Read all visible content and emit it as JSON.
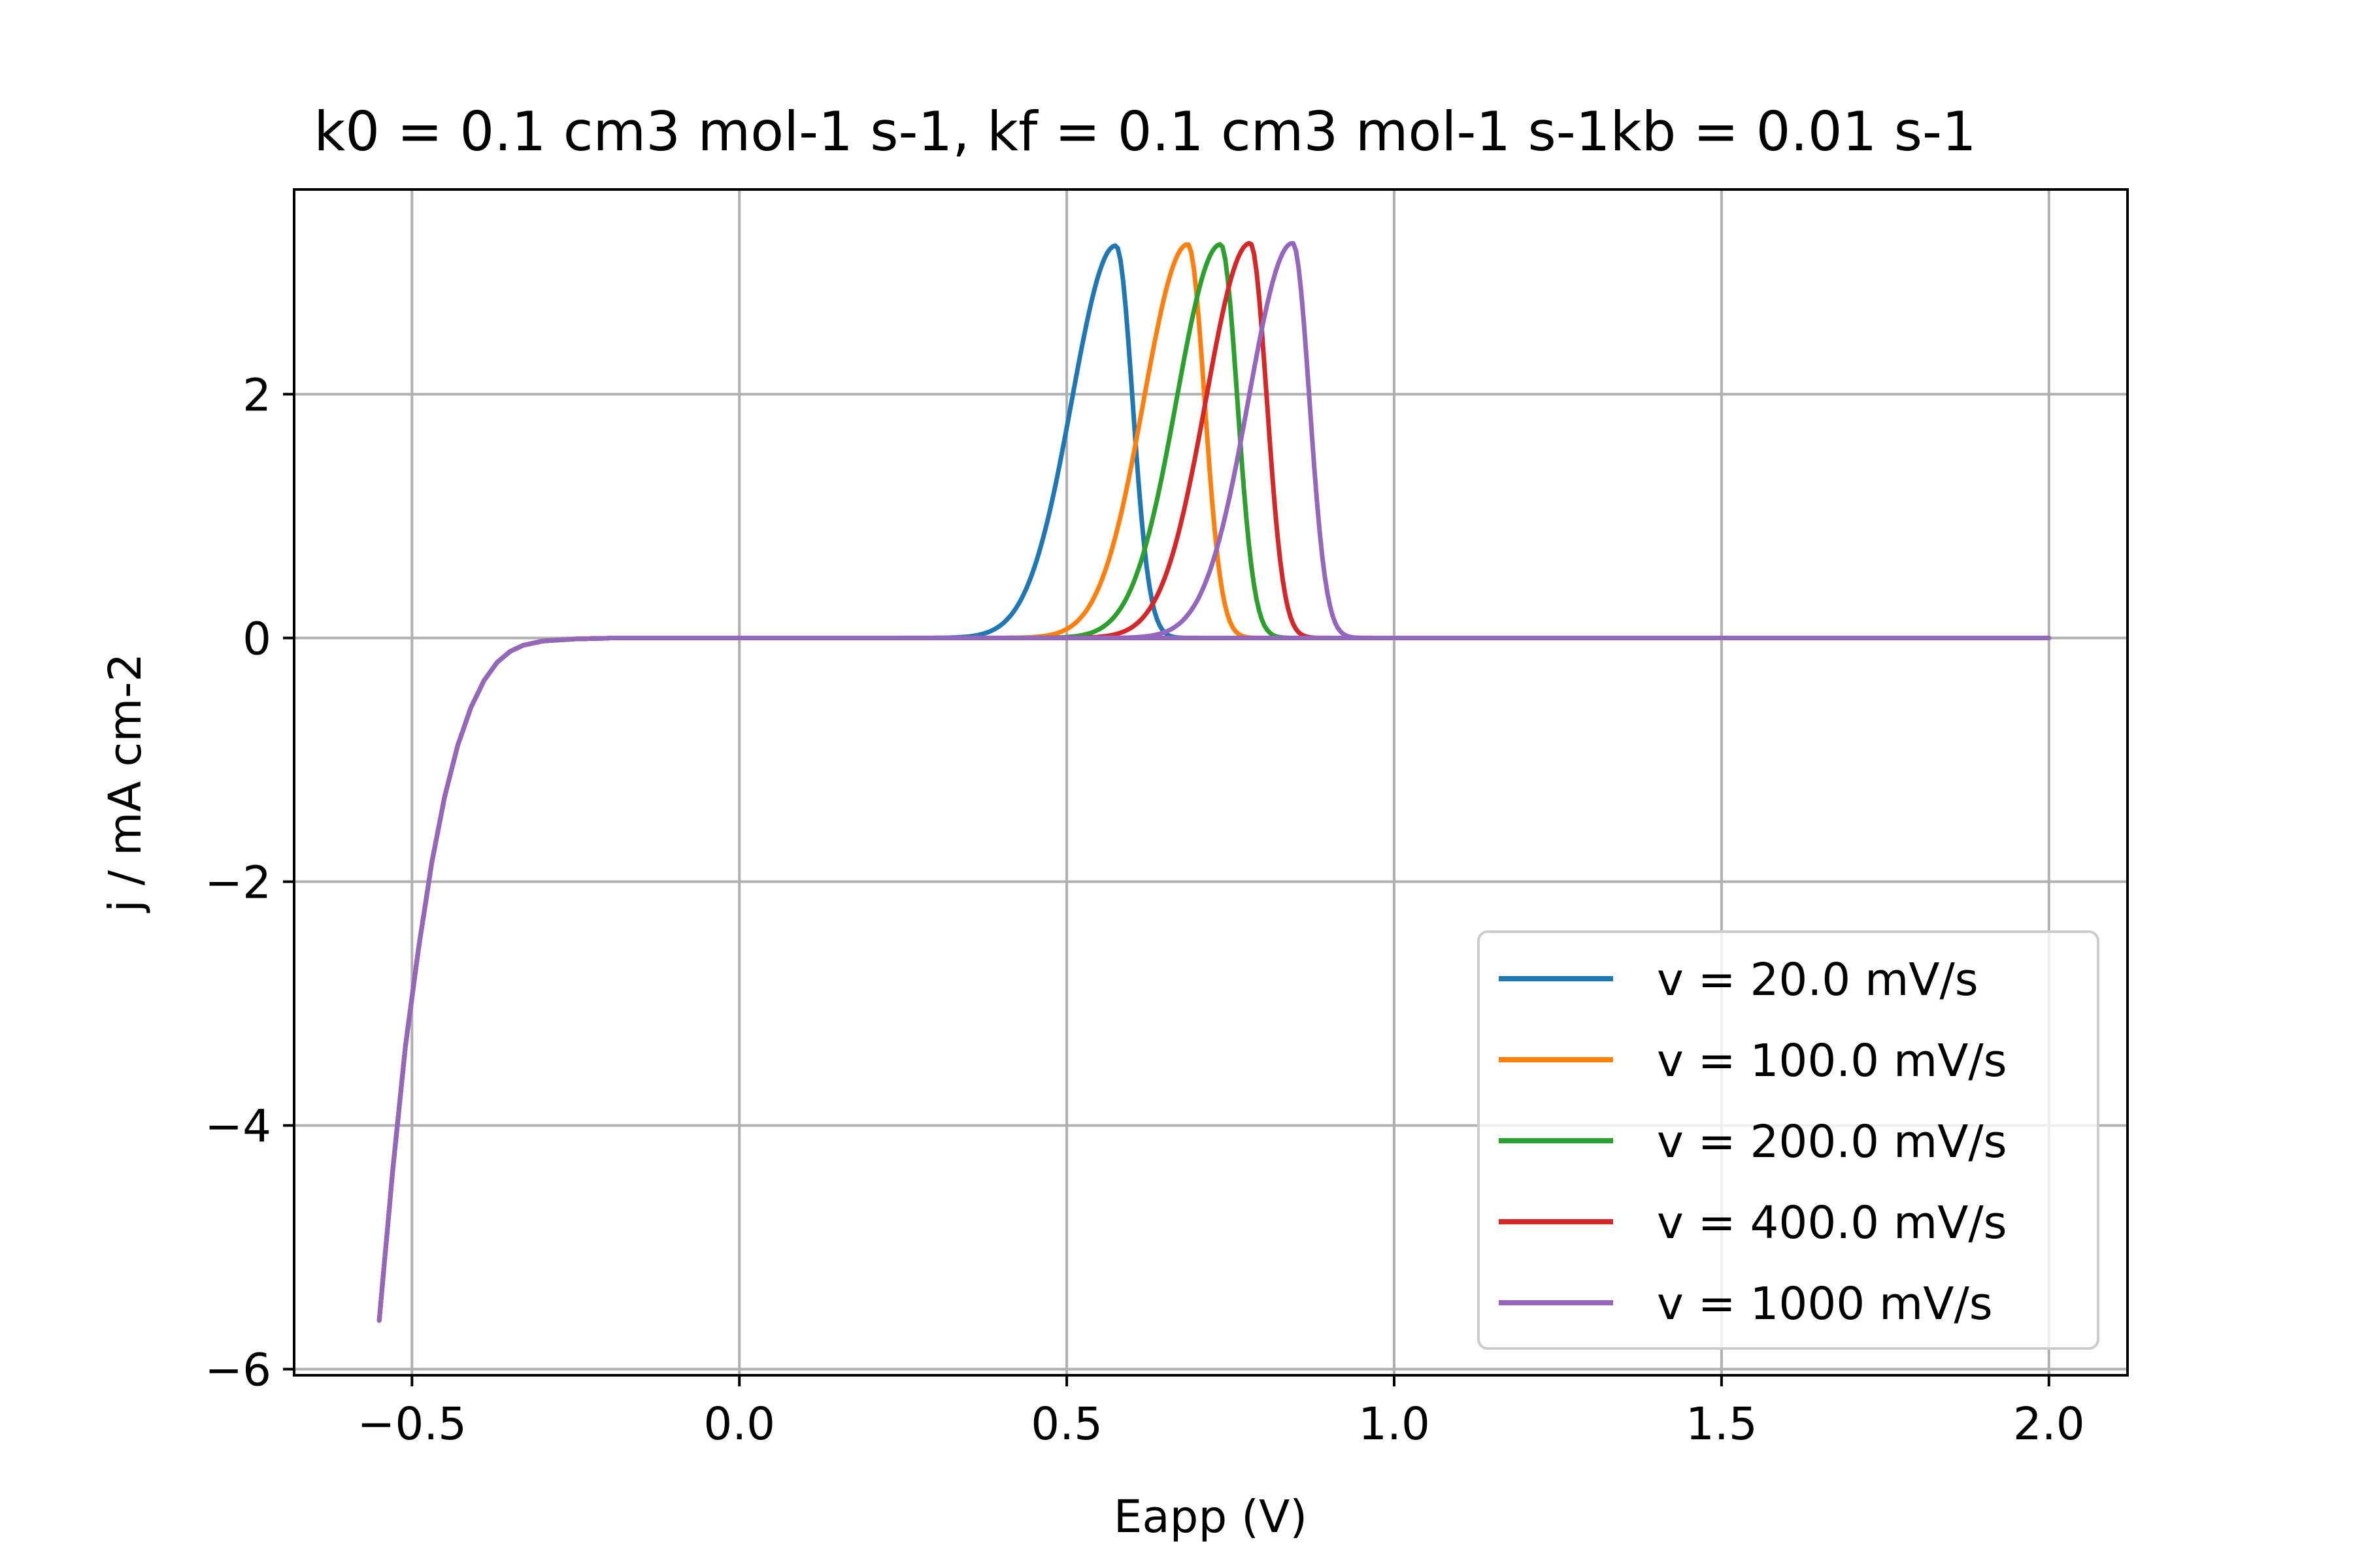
{
  "chart_data": {
    "type": "line",
    "title": "k0 = 0.1 cm3 mol-1 s-1, kf = 0.1 cm3 mol-1 s-1kb = 0.01 s-1",
    "xlabel": "Eapp (V)",
    "ylabel": "j / mA cm-2",
    "xlim": [
      -0.68,
      2.12
    ],
    "ylim": [
      -6.05,
      3.68
    ],
    "xticks": [
      -0.5,
      0.0,
      0.5,
      1.0,
      1.5,
      2.0
    ],
    "xtick_labels": [
      "−0.5",
      "0.0",
      "0.5",
      "1.0",
      "1.5",
      "2.0"
    ],
    "yticks": [
      -6,
      -4,
      -2,
      0,
      2
    ],
    "ytick_labels": [
      "−6",
      "−4",
      "−2",
      "0",
      "2"
    ],
    "grid": true,
    "legend_position": "bottom-right",
    "x_range": [
      -0.55,
      2.0
    ],
    "cathodic_branch": {
      "E": [
        -0.55,
        -0.53,
        -0.51,
        -0.49,
        -0.47,
        -0.45,
        -0.43,
        -0.41,
        -0.39,
        -0.37,
        -0.35,
        -0.33,
        -0.3,
        -0.25,
        -0.2
      ],
      "j": [
        -5.6,
        -4.4,
        -3.35,
        -2.55,
        -1.85,
        -1.3,
        -0.88,
        -0.57,
        -0.35,
        -0.2,
        -0.11,
        -0.06,
        -0.025,
        -0.008,
        -0.002
      ]
    },
    "series": [
      {
        "name": "v = 20.0 mV/s",
        "color": "#1f77b4",
        "peak_E": 0.575,
        "peak_j": 3.22
      },
      {
        "name": "v = 100.0 mV/s",
        "color": "#ff7f0e",
        "peak_E": 0.685,
        "peak_j": 3.23
      },
      {
        "name": "v = 200.0 mV/s",
        "color": "#2ca02c",
        "peak_E": 0.735,
        "peak_j": 3.23
      },
      {
        "name": "v = 400.0 mV/s",
        "color": "#d62728",
        "peak_E": 0.78,
        "peak_j": 3.24
      },
      {
        "name": "v = 1000 mV/s",
        "color": "#9467bd",
        "peak_E": 0.845,
        "peak_j": 3.24
      }
    ]
  }
}
